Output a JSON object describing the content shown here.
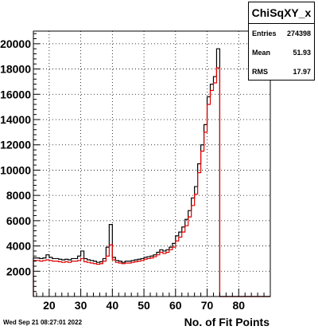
{
  "stats": {
    "title": "ChiSqXY_x",
    "rows": [
      {
        "label": "Entries",
        "value": "274398"
      },
      {
        "label": "Mean",
        "value": "51.93"
      },
      {
        "label": "RMS",
        "value": "17.97"
      }
    ]
  },
  "footer": {
    "date": "Wed Sep 21 08:27:01 2022"
  },
  "chart_data": {
    "type": "histogram",
    "xlabel": "No. of Fit Points",
    "ylabel": "",
    "xlim": [
      15,
      90
    ],
    "ylim": [
      0,
      21000
    ],
    "xticks": [
      20,
      30,
      40,
      50,
      60,
      70,
      80
    ],
    "yticks": [
      2000,
      4000,
      6000,
      8000,
      10000,
      12000,
      14000,
      16000,
      18000,
      20000
    ],
    "grid": true,
    "bin_width": 1,
    "bin_start": 15,
    "colors": {
      "black": "#000000",
      "red": "#e00000"
    },
    "series": [
      {
        "color": "black",
        "values": [
          3050,
          3050,
          3000,
          3050,
          3300,
          3100,
          3000,
          3000,
          2950,
          2900,
          2950,
          2900,
          3000,
          3000,
          3200,
          3600,
          3000,
          2900,
          2850,
          2800,
          2700,
          2750,
          3000,
          3900,
          5700,
          3100,
          2850,
          2800,
          2700,
          2800,
          2800,
          2850,
          2900,
          2950,
          3000,
          3100,
          3150,
          3200,
          3300,
          3500,
          3700,
          3600,
          3700,
          3900,
          4200,
          4800,
          5100,
          5500,
          6100,
          6800,
          7800,
          8700,
          10500,
          12000,
          13600,
          15800,
          16800,
          17400,
          19600,
          0,
          0,
          0,
          0,
          0,
          0,
          0,
          0,
          0,
          0,
          0,
          0,
          0,
          0,
          0,
          0
        ]
      },
      {
        "color": "red",
        "values": [
          2850,
          2850,
          2800,
          2850,
          2900,
          2850,
          2800,
          2800,
          2750,
          2700,
          2750,
          2700,
          2800,
          2800,
          2850,
          3000,
          2750,
          2700,
          2650,
          2600,
          2550,
          2600,
          2800,
          3200,
          4100,
          2900,
          2700,
          2650,
          2600,
          2650,
          2650,
          2700,
          2750,
          2800,
          2850,
          2950,
          3000,
          3050,
          3150,
          3300,
          3500,
          3400,
          3500,
          3700,
          3900,
          4400,
          4700,
          5100,
          5600,
          6300,
          7200,
          8100,
          9800,
          11500,
          13000,
          15200,
          16300,
          16900,
          18100,
          0,
          0,
          0,
          0,
          0,
          0,
          0,
          0,
          0,
          0,
          0,
          0,
          0,
          0,
          0,
          0
        ]
      }
    ]
  }
}
